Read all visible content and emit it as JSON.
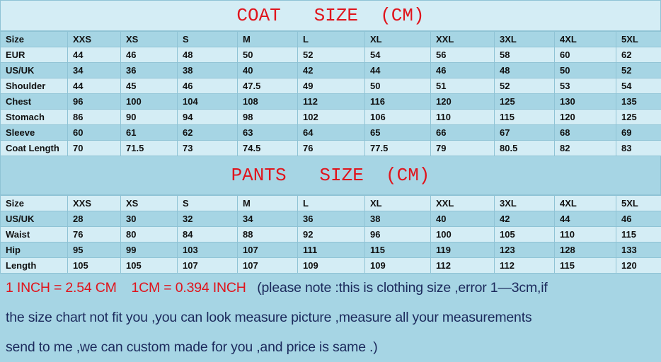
{
  "coat": {
    "title": "COAT   SIZE  (CM)",
    "header": [
      "Size",
      "XXS",
      "XS",
      "S",
      "M",
      "L",
      "XL",
      "XXL",
      "3XL",
      "4XL",
      "5XL"
    ],
    "rows": [
      [
        "EUR",
        "44",
        "46",
        "48",
        "50",
        "52",
        "54",
        "56",
        "58",
        "60",
        "62"
      ],
      [
        "US/UK",
        "34",
        "36",
        "38",
        "40",
        "42",
        "44",
        "46",
        "48",
        "50",
        "52"
      ],
      [
        "Shoulder",
        "44",
        "45",
        "46",
        "47.5",
        "49",
        "50",
        "51",
        "52",
        "53",
        "54"
      ],
      [
        "Chest",
        "96",
        "100",
        "104",
        "108",
        "112",
        "116",
        "120",
        "125",
        "130",
        "135"
      ],
      [
        "Stomach",
        "86",
        "90",
        "94",
        "98",
        "102",
        "106",
        "110",
        "115",
        "120",
        "125"
      ],
      [
        "Sleeve",
        "60",
        "61",
        "62",
        "63",
        "64",
        "65",
        "66",
        "67",
        "68",
        "69"
      ],
      [
        "Coat Length",
        "70",
        "71.5",
        "73",
        "74.5",
        "76",
        "77.5",
        "79",
        "80.5",
        "82",
        "83"
      ]
    ]
  },
  "pants": {
    "title": "PANTS   SIZE  (CM)",
    "header": [
      "Size",
      "XXS",
      "XS",
      "S",
      "M",
      "L",
      "XL",
      "XXL",
      "3XL",
      "4XL",
      "5XL"
    ],
    "rows": [
      [
        "US/UK",
        "28",
        "30",
        "32",
        "34",
        "36",
        "38",
        "40",
        "42",
        "44",
        "46"
      ],
      [
        "Waist",
        "76",
        "80",
        "84",
        "88",
        "92",
        "96",
        "100",
        "105",
        "110",
        "115"
      ],
      [
        "Hip",
        "95",
        "99",
        "103",
        "107",
        "111",
        "115",
        "119",
        "123",
        "128",
        "133"
      ],
      [
        "Length",
        "105",
        "105",
        "107",
        "107",
        "109",
        "109",
        "112",
        "112",
        "115",
        "120"
      ]
    ]
  },
  "notes": {
    "conversion": "1 INCH = 2.54 CM    1CM = 0.394 INCH",
    "line1": "   (please note :this is clothing size ,error 1—3cm,if",
    "line2": "the size chart not fit you ,you can look measure picture ,measure all your measurements",
    "line3": "send to me ,we can custom made for you ,and price is same .)"
  },
  "colors": {
    "title": "#e0141c",
    "text": "#1c2a5c",
    "light_row": "#d4edf5",
    "dark_row": "#a6d5e4"
  }
}
